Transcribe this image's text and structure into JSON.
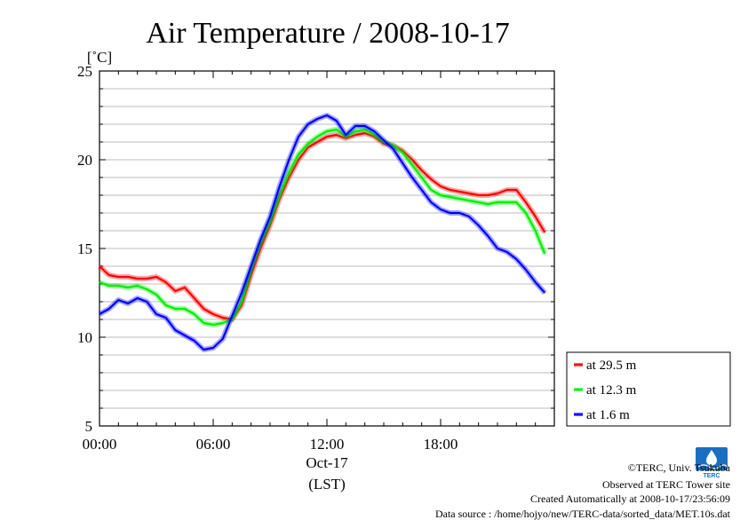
{
  "chart_data": {
    "type": "line",
    "title": "Air Temperature / 2008-10-17",
    "ylabel": "[˚C]",
    "xlabel": "(LST)",
    "date_label": "Oct-17",
    "ylim": [
      5,
      25
    ],
    "yticks": [
      5,
      10,
      15,
      20,
      25
    ],
    "xlim": [
      0,
      24
    ],
    "xticks": [
      0,
      6,
      12,
      18
    ],
    "xtick_labels": [
      "00:00",
      "06:00",
      "12:00",
      "18:00"
    ],
    "grid": true,
    "legend_position": "right",
    "series": [
      {
        "name": "at 29.5 m",
        "color": "#ff0000",
        "x": [
          0,
          0.5,
          1,
          1.5,
          2,
          2.5,
          3,
          3.5,
          4,
          4.5,
          5,
          5.5,
          6,
          6.5,
          7,
          7.5,
          8,
          8.5,
          9,
          9.5,
          10,
          10.5,
          11,
          11.5,
          12,
          12.5,
          13,
          13.5,
          14,
          14.5,
          15,
          15.5,
          16,
          16.5,
          17,
          17.5,
          18,
          18.5,
          19,
          19.5,
          20,
          20.5,
          21,
          21.5,
          22,
          22.5,
          23,
          23.5
        ],
        "values": [
          14.0,
          13.5,
          13.4,
          13.4,
          13.3,
          13.3,
          13.4,
          13.1,
          12.6,
          12.8,
          12.2,
          11.6,
          11.3,
          11.1,
          11.0,
          11.8,
          13.5,
          15.0,
          16.3,
          17.8,
          19.0,
          20.0,
          20.7,
          21.0,
          21.3,
          21.4,
          21.2,
          21.4,
          21.5,
          21.3,
          20.9,
          20.8,
          20.5,
          20.0,
          19.4,
          18.9,
          18.5,
          18.3,
          18.2,
          18.1,
          18.0,
          18.0,
          18.1,
          18.3,
          18.3,
          17.6,
          16.8,
          15.9
        ]
      },
      {
        "name": "at 12.3 m",
        "color": "#00ee00",
        "x": [
          0,
          0.5,
          1,
          1.5,
          2,
          2.5,
          3,
          3.5,
          4,
          4.5,
          5,
          5.5,
          6,
          6.5,
          7,
          7.5,
          8,
          8.5,
          9,
          9.5,
          10,
          10.5,
          11,
          11.5,
          12,
          12.5,
          13,
          13.5,
          14,
          14.5,
          15,
          15.5,
          16,
          16.5,
          17,
          17.5,
          18,
          18.5,
          19,
          19.5,
          20,
          20.5,
          21,
          21.5,
          22,
          22.5,
          23,
          23.5
        ],
        "values": [
          13.1,
          12.9,
          12.9,
          12.8,
          12.9,
          12.7,
          12.4,
          11.8,
          11.6,
          11.6,
          11.3,
          10.8,
          10.7,
          10.8,
          11.0,
          12.0,
          13.8,
          15.3,
          16.5,
          18.0,
          19.3,
          20.3,
          20.9,
          21.3,
          21.6,
          21.7,
          21.3,
          21.6,
          21.7,
          21.4,
          21.0,
          20.8,
          20.4,
          19.7,
          19.0,
          18.3,
          18.0,
          17.9,
          17.8,
          17.7,
          17.6,
          17.5,
          17.6,
          17.6,
          17.6,
          17.0,
          16.0,
          14.7
        ]
      },
      {
        "name": "at 1.6 m",
        "color": "#0000ff",
        "x": [
          0,
          0.5,
          1,
          1.5,
          2,
          2.5,
          3,
          3.5,
          4,
          4.5,
          5,
          5.5,
          6,
          6.5,
          7,
          7.5,
          8,
          8.5,
          9,
          9.5,
          10,
          10.5,
          11,
          11.5,
          12,
          12.5,
          13,
          13.5,
          14,
          14.5,
          15,
          15.5,
          16,
          16.5,
          17,
          17.5,
          18,
          18.5,
          19,
          19.5,
          20,
          20.5,
          21,
          21.5,
          22,
          22.5,
          23,
          23.5
        ],
        "values": [
          11.3,
          11.6,
          12.1,
          11.9,
          12.2,
          12.0,
          11.3,
          11.1,
          10.4,
          10.1,
          9.8,
          9.3,
          9.4,
          9.9,
          11.2,
          12.5,
          14.0,
          15.5,
          16.8,
          18.5,
          20.0,
          21.3,
          22.0,
          22.3,
          22.5,
          22.2,
          21.4,
          21.9,
          21.9,
          21.6,
          21.1,
          20.6,
          19.8,
          19.0,
          18.3,
          17.6,
          17.2,
          17.0,
          17.0,
          16.8,
          16.3,
          15.7,
          15.0,
          14.8,
          14.4,
          13.8,
          13.1,
          12.5
        ]
      }
    ]
  },
  "footer": {
    "copyright": "©TERC, Univ. Tsukuba",
    "site": "Observed at TERC Tower site",
    "created": "Created Automatically at 2008-10-17/23:56:09",
    "source": "Data source : /home/hojyo/new/TERC-data/sorted_data/MET.10s.dat"
  },
  "logo": {
    "text": "TERC",
    "color": "#1a6fc2"
  }
}
